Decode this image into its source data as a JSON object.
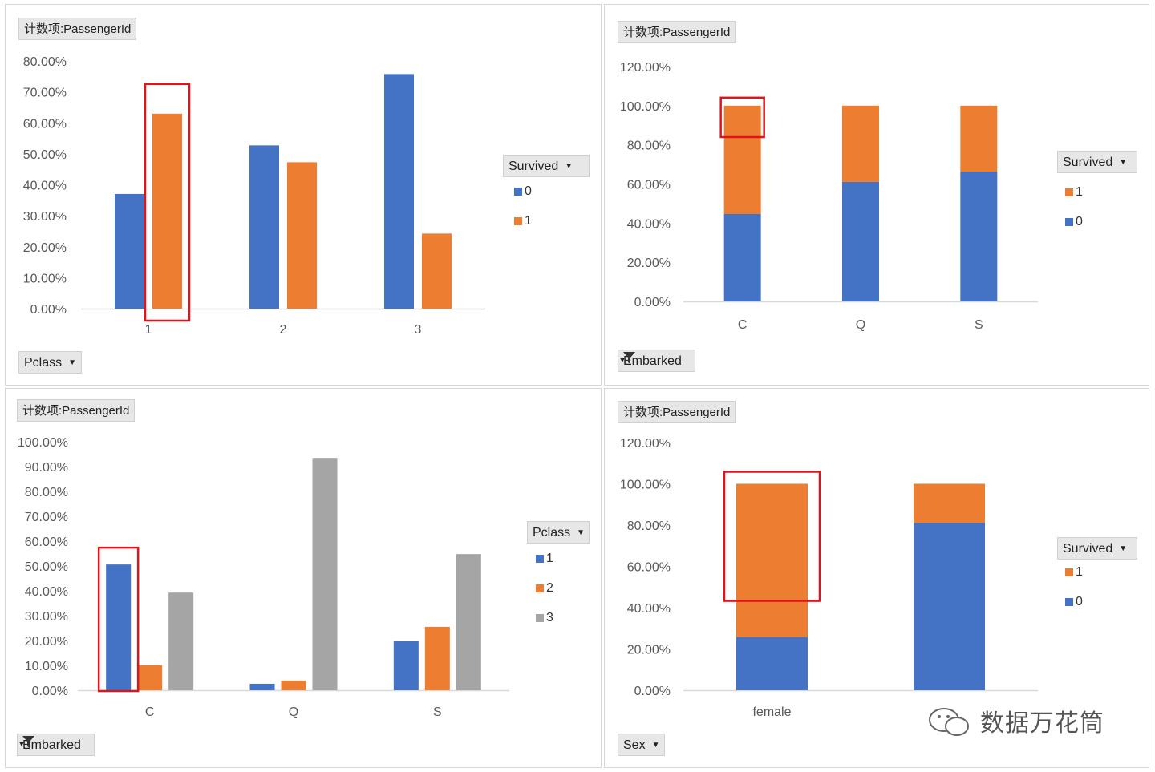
{
  "colors": {
    "blue": "#4472c4",
    "orange": "#ed7d31",
    "gray": "#a5a5a5",
    "highlight": "#e0141b"
  },
  "watermark": {
    "text": "数据万花筒"
  },
  "chart_data": [
    {
      "id": "c1",
      "type": "bar",
      "title": "计数项:PassengerId",
      "categories": [
        "1",
        "2",
        "3"
      ],
      "series": [
        {
          "name": "0",
          "values": [
            37.04,
            52.72,
            75.76
          ]
        },
        {
          "name": "1",
          "values": [
            62.96,
            47.28,
            24.24
          ]
        }
      ],
      "ylim": [
        0,
        80
      ],
      "ytick_step": 10,
      "yticks": [
        "0.00%",
        "10.00%",
        "20.00%",
        "30.00%",
        "40.00%",
        "50.00%",
        "60.00%",
        "70.00%",
        "80.00%"
      ],
      "legend_title": "Survived",
      "legend_items": [
        {
          "label": "0",
          "color": "#4472c4"
        },
        {
          "label": "1",
          "color": "#ed7d31"
        }
      ],
      "axis_field": "Pclass",
      "axis_filter": false,
      "highlight": "category 1, series 1"
    },
    {
      "id": "c2",
      "type": "bar",
      "stacked": true,
      "title": "计数项:PassengerId",
      "categories": [
        "C",
        "Q",
        "S"
      ],
      "series": [
        {
          "name": "0",
          "values": [
            44.64,
            61.04,
            66.3
          ]
        },
        {
          "name": "1",
          "values": [
            55.36,
            38.96,
            33.7
          ]
        }
      ],
      "ylim": [
        0,
        120
      ],
      "ytick_step": 20,
      "yticks": [
        "0.00%",
        "20.00%",
        "40.00%",
        "60.00%",
        "80.00%",
        "100.00%",
        "120.00%"
      ],
      "legend_title": "Survived",
      "legend_items": [
        {
          "label": "1",
          "color": "#ed7d31"
        },
        {
          "label": "0",
          "color": "#4472c4"
        }
      ],
      "axis_field": "Embarked",
      "axis_filter": true,
      "highlight": "category C, series 1"
    },
    {
      "id": "c3",
      "type": "bar",
      "title": "计数项:PassengerId",
      "categories": [
        "C",
        "Q",
        "S"
      ],
      "series": [
        {
          "name": "1",
          "values": [
            50.6,
            2.6,
            19.7
          ]
        },
        {
          "name": "2",
          "values": [
            10.1,
            3.9,
            25.5
          ]
        },
        {
          "name": "3",
          "values": [
            39.3,
            93.5,
            54.8
          ]
        }
      ],
      "ylim": [
        0,
        100
      ],
      "ytick_step": 10,
      "yticks": [
        "0.00%",
        "10.00%",
        "20.00%",
        "30.00%",
        "40.00%",
        "50.00%",
        "60.00%",
        "70.00%",
        "80.00%",
        "90.00%",
        "100.00%"
      ],
      "legend_title": "Pclass",
      "legend_items": [
        {
          "label": "1",
          "color": "#4472c4"
        },
        {
          "label": "2",
          "color": "#ed7d31"
        },
        {
          "label": "3",
          "color": "#a5a5a5"
        }
      ],
      "axis_field": "Embarked",
      "axis_filter": true,
      "highlight": "category C, series 1"
    },
    {
      "id": "c4",
      "type": "bar",
      "stacked": true,
      "title": "计数项:PassengerId",
      "categories": [
        "female",
        ""
      ],
      "series": [
        {
          "name": "0",
          "values": [
            25.8,
            81.1
          ]
        },
        {
          "name": "1",
          "values": [
            74.2,
            18.9
          ]
        }
      ],
      "ylim": [
        0,
        120
      ],
      "ytick_step": 20,
      "yticks": [
        "0.00%",
        "20.00%",
        "40.00%",
        "60.00%",
        "80.00%",
        "100.00%",
        "120.00%"
      ],
      "legend_title": "Survived",
      "legend_items": [
        {
          "label": "1",
          "color": "#ed7d31"
        },
        {
          "label": "0",
          "color": "#4472c4"
        }
      ],
      "axis_field": "Sex",
      "axis_filter": false,
      "highlight": "category female, series 1"
    }
  ]
}
